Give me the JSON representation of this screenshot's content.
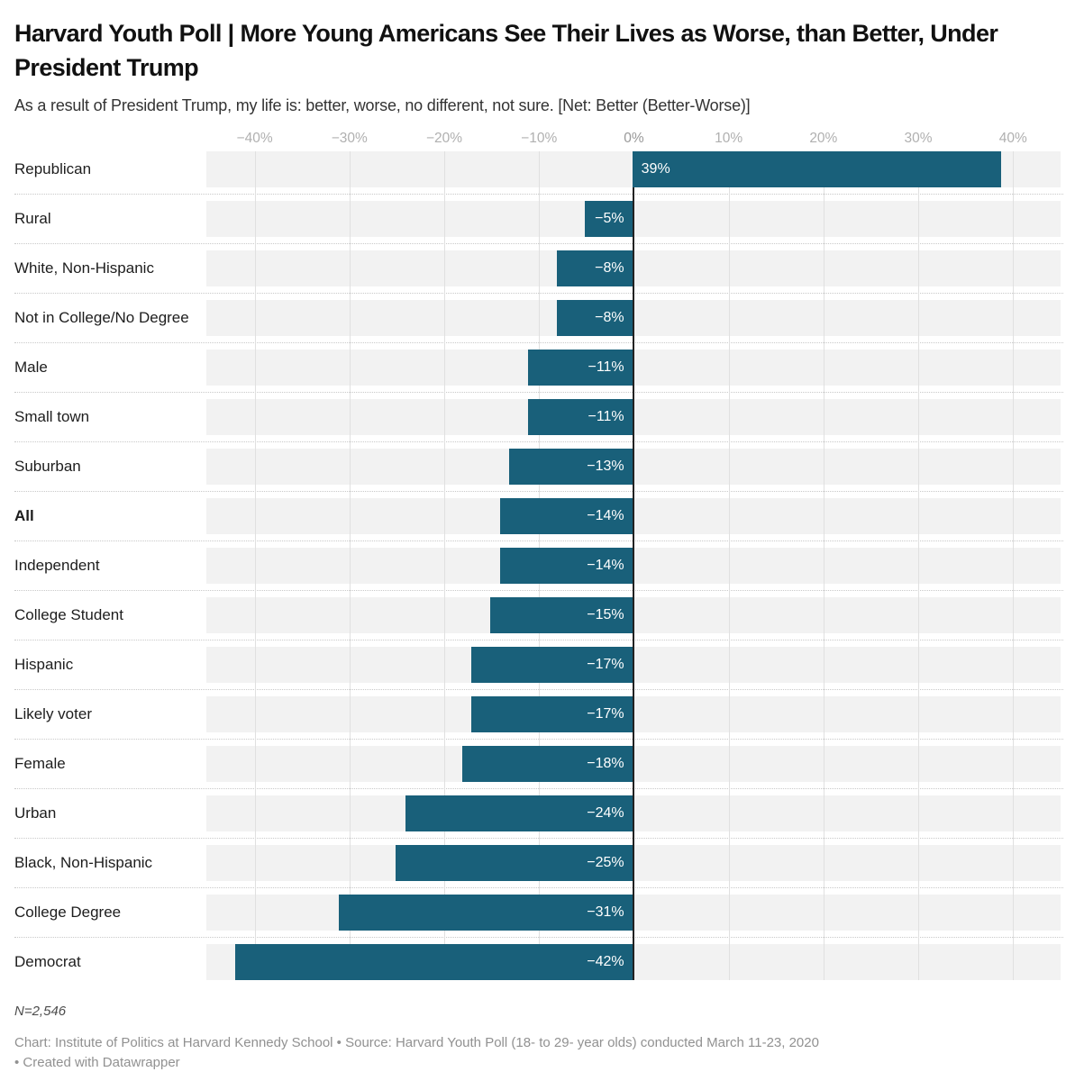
{
  "header": {
    "title": "Harvard Youth Poll | More Young Americans See Their Lives as Worse, than Better, Under President Trump",
    "subtitle": "As a result of President Trump, my life is: better, worse, no different, not sure. [Net: Better (Better-Worse)]"
  },
  "chart_data": {
    "type": "bar",
    "orientation": "horizontal",
    "title": "Harvard Youth Poll | More Young Americans See Their Lives as Worse, than Better, Under President Trump",
    "subtitle": "As a result of President Trump, my life is: better, worse, no different, not sure. [Net: Better (Better-Worse)]",
    "categories": [
      "Republican",
      "Rural",
      "White, Non-Hispanic",
      "Not in College/No Degree",
      "Male",
      "Small town",
      "Suburban",
      "All",
      "Independent",
      "College Student",
      "Hispanic",
      "Likely voter",
      "Female",
      "Urban",
      "Black, Non-Hispanic",
      "College Degree",
      "Democrat"
    ],
    "values": [
      39,
      -5,
      -8,
      -8,
      -11,
      -11,
      -13,
      -14,
      -14,
      -15,
      -17,
      -17,
      -18,
      -24,
      -25,
      -31,
      -42
    ],
    "value_labels": [
      "39%",
      "−5%",
      "−8%",
      "−8%",
      "−11%",
      "−11%",
      "−13%",
      "−14%",
      "−14%",
      "−15%",
      "−17%",
      "−17%",
      "−18%",
      "−24%",
      "−25%",
      "−31%",
      "−42%"
    ],
    "emphasized_category": "All",
    "x_ticks": [
      -40,
      -30,
      -20,
      -10,
      0,
      10,
      20,
      30,
      40
    ],
    "x_tick_labels": [
      "−40%",
      "−30%",
      "−20%",
      "−10%",
      "0%",
      "10%",
      "20%",
      "30%",
      "40%"
    ],
    "xlim": [
      -45,
      45.3
    ],
    "grid": true,
    "legend": "none",
    "bar_color": "#19607a",
    "band_color": "#f2f2f2",
    "zero_line_color": "#222222"
  },
  "footer": {
    "note": "N=2,546",
    "credit_line1": "Chart: Institute of Politics at Harvard Kennedy School • Source: Harvard Youth Poll (18- to 29- year olds) conducted March 11-23, 2020",
    "credit_line2_prefix": "• ",
    "datawrapper_credit": "Created with Datawrapper"
  }
}
